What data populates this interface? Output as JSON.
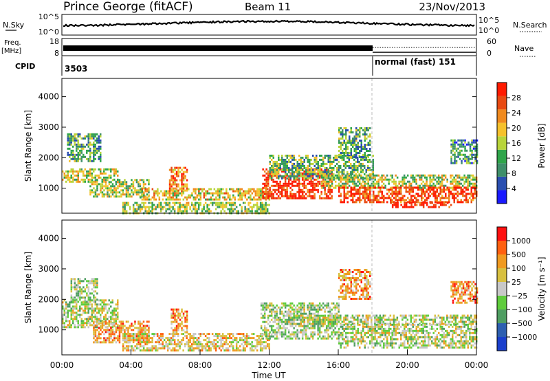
{
  "header": {
    "station": "Prince George (fitACF)",
    "beam": "Beam 11",
    "date": "23/Nov/2013"
  },
  "strips": {
    "nsky_label": "N.Sky",
    "nsky_ticks": [
      "10^5",
      "10^0"
    ],
    "nsearch_label": "N.Search",
    "nsearch_ticks": [
      "10^5",
      "10^0"
    ],
    "freq_label_1": "Freq.",
    "freq_label_2": "[MHz]",
    "freq_ticks": [
      "18",
      "8"
    ],
    "nave_label": "Nave",
    "nave_ticks": [
      "60",
      "0"
    ],
    "cpid_label": "CPID",
    "cpid_1": "3503",
    "cpid_2": "normal (fast) 151"
  },
  "colors": {
    "power": [
      "#1a1aff",
      "#2a4fb0",
      "#3f8f6a",
      "#2fa54a",
      "#b8d43a",
      "#f5c12c",
      "#f08a1e",
      "#e84a12",
      "#ff1a00"
    ],
    "velocity": [
      "#1a3fcc",
      "#2d5fb0",
      "#4f9e62",
      "#5fcc3c",
      "#c8c8c8",
      "#d8c040",
      "#f09a20",
      "#ff6010",
      "#ff1010"
    ]
  },
  "chart_data": [
    {
      "type": "heatmap",
      "panel": "power",
      "xlabel": "",
      "ylabel": "Slant Range [km]",
      "ylim": [
        180,
        4600
      ],
      "yticks": [
        "4000",
        "3000",
        "2000",
        "1000"
      ],
      "colorbar_label": "Power [dB]",
      "colorbar_ticks": [
        "28",
        "24",
        "20",
        "16",
        "12",
        "8",
        "4"
      ],
      "bands": [
        {
          "t0": 0.0,
          "t1": 3.2,
          "r0": 1200,
          "r1": 1650,
          "level": 0.55
        },
        {
          "t0": 0.3,
          "t1": 2.2,
          "r0": 1900,
          "r1": 2800,
          "level": 0.35
        },
        {
          "t0": 1.6,
          "t1": 5.0,
          "r0": 700,
          "r1": 1300,
          "level": 0.5
        },
        {
          "t0": 4.5,
          "t1": 12.0,
          "r0": 600,
          "r1": 1000,
          "level": 0.6
        },
        {
          "t0": 3.5,
          "t1": 12.0,
          "r0": 200,
          "r1": 550,
          "level": 0.45
        },
        {
          "t0": 6.2,
          "t1": 7.2,
          "r0": 900,
          "r1": 1700,
          "level": 0.75
        },
        {
          "t0": 11.6,
          "t1": 15.6,
          "r0": 700,
          "r1": 1650,
          "level": 0.92
        },
        {
          "t0": 12.0,
          "t1": 18.0,
          "r0": 1300,
          "r1": 2100,
          "level": 0.4
        },
        {
          "t0": 15.0,
          "t1": 24.0,
          "r0": 1000,
          "r1": 1450,
          "level": 0.5
        },
        {
          "t0": 16.0,
          "t1": 24.0,
          "r0": 550,
          "r1": 1050,
          "level": 0.88
        },
        {
          "t0": 19.0,
          "t1": 22.5,
          "r0": 350,
          "r1": 550,
          "level": 0.98
        },
        {
          "t0": 16.0,
          "t1": 17.8,
          "r0": 2000,
          "r1": 3000,
          "level": 0.35
        },
        {
          "t0": 22.5,
          "t1": 24.0,
          "r0": 1800,
          "r1": 2600,
          "level": 0.3
        }
      ]
    },
    {
      "type": "heatmap",
      "panel": "velocity",
      "xlabel": "Time UT",
      "ylabel": "Slant Range [km]",
      "ylim": [
        180,
        4600
      ],
      "yticks": [
        "4000",
        "3000",
        "2000",
        "1000"
      ],
      "xticks": [
        "00:00",
        "04:00",
        "08:00",
        "12:00",
        "16:00",
        "20:00",
        "00:00"
      ],
      "xlim": [
        0,
        24
      ],
      "colorbar_label": "Velocity [m s⁻¹]",
      "colorbar_ticks": [
        "1000",
        "500",
        "100",
        "25",
        "−25",
        "−100",
        "−500",
        "−1000"
      ],
      "bands": [
        {
          "t0": 0.0,
          "t1": 3.2,
          "r0": 1100,
          "r1": 2000,
          "level": 0.5
        },
        {
          "t0": 0.5,
          "t1": 2.0,
          "r0": 1900,
          "r1": 2700,
          "level": 0.45
        },
        {
          "t0": 1.8,
          "t1": 5.0,
          "r0": 600,
          "r1": 1300,
          "level": 0.7
        },
        {
          "t0": 3.5,
          "t1": 12.0,
          "r0": 300,
          "r1": 900,
          "level": 0.6
        },
        {
          "t0": 6.3,
          "t1": 7.2,
          "r0": 900,
          "r1": 1700,
          "level": 0.75
        },
        {
          "t0": 11.5,
          "t1": 16.0,
          "r0": 700,
          "r1": 1900,
          "level": 0.45
        },
        {
          "t0": 13.0,
          "t1": 24.0,
          "r0": 1200,
          "r1": 1500,
          "level": 0.48
        },
        {
          "t0": 16.0,
          "t1": 24.0,
          "r0": 400,
          "r1": 1200,
          "level": 0.5
        },
        {
          "t0": 16.0,
          "t1": 17.8,
          "r0": 2000,
          "r1": 3000,
          "level": 0.7
        },
        {
          "t0": 22.5,
          "t1": 24.0,
          "r0": 1900,
          "r1": 2600,
          "level": 0.72
        }
      ]
    }
  ]
}
